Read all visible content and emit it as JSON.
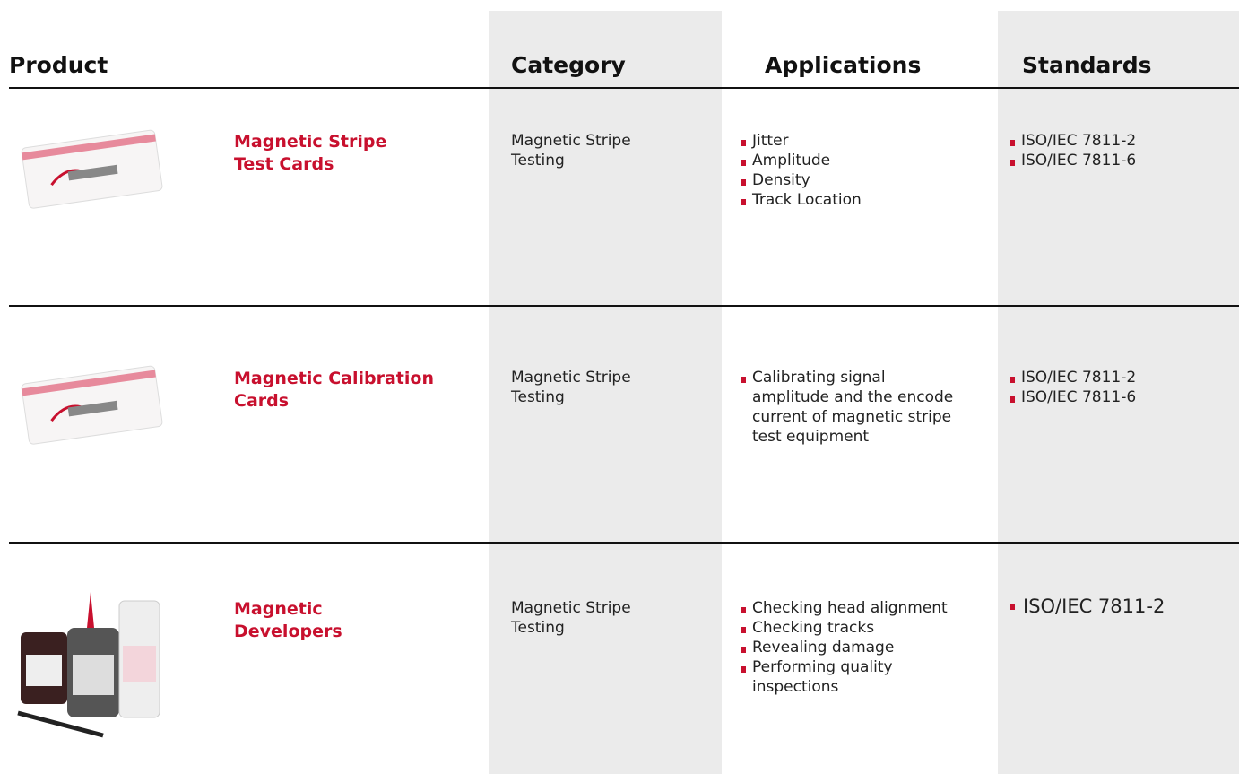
{
  "header": {
    "product": "Product",
    "category": "Category",
    "applications": "Applications",
    "standards": "Standards"
  },
  "rows": [
    {
      "name": [
        "Magnetic Stripe",
        "Test Cards"
      ],
      "category": "Magnetic Stripe Testing",
      "applications": [
        "Jitter",
        "Amplitude",
        "Density",
        "Track Location"
      ],
      "standards": [
        "ISO/IEC 7811-2",
        "ISO/IEC 7811-6"
      ]
    },
    {
      "name": [
        "Magnetic Calibration",
        "Cards"
      ],
      "category": "Magnetic Stripe Testing",
      "applications": [
        "Calibrating signal amplitude and the encode current of magnetic stripe test equipment"
      ],
      "standards": [
        "ISO/IEC 7811-2",
        "ISO/IEC 7811-6"
      ]
    },
    {
      "name": [
        "Magnetic",
        "Developers"
      ],
      "category": "Magnetic Stripe Testing",
      "applications": [
        "Checking head alignment",
        "Checking tracks",
        "Revealing damage",
        "Performing quality inspections"
      ],
      "standards": [
        "ISO/IEC 7811-2"
      ]
    }
  ]
}
